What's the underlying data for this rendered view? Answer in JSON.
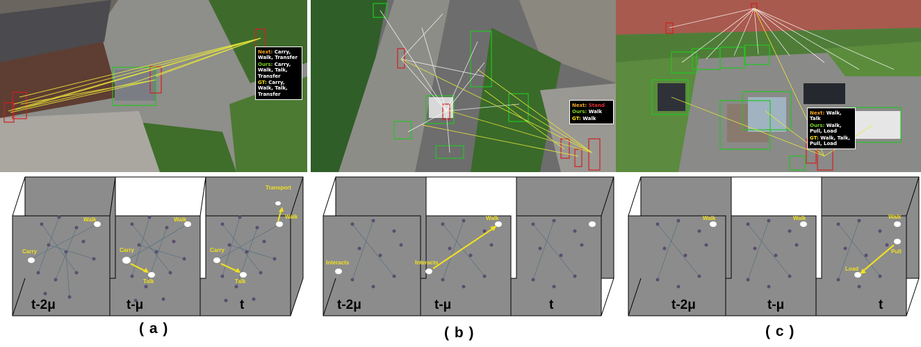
{
  "panels": [
    {
      "label": "( a )",
      "callout": {
        "next_tag": "Next:",
        "next": "Carry, Walk, Transfer",
        "ours_tag": "Ours:",
        "ours": "Carry, Walk, Talk, Transfer",
        "gt_tag": "GT:",
        "gt": "Carry, Walk, Talk, Transfer"
      },
      "frames": [
        "t-2μ",
        "t-μ",
        "t"
      ],
      "node_labels": {
        "f1": [
          "Walk",
          "Carry"
        ],
        "f2": [
          "Walk",
          "Carry",
          "Talk"
        ],
        "f3": [
          "Transport",
          "Walk",
          "Carry",
          "Talk"
        ]
      }
    },
    {
      "label": "( b )",
      "callout": {
        "next_tag": "Next:",
        "next": "Stand",
        "ours_tag": "Ours:",
        "ours": "Walk",
        "gt_tag": "GT:",
        "gt": "Walk"
      },
      "frames": [
        "t-2μ",
        "t-μ",
        "t"
      ],
      "node_labels": {
        "f1": [
          "Interacts"
        ],
        "f2": [
          "Walk",
          "Interacts"
        ],
        "f3": []
      }
    },
    {
      "label": "( c )",
      "callout": {
        "next_tag": "Next:",
        "next": "Walk, Talk",
        "ours_tag": "Ours:",
        "ours": "Walk, Pull, Load",
        "gt_tag": "GT:",
        "gt": "Walk, Talk, Pull, Load"
      },
      "frames": [
        "t-2μ",
        "t-μ",
        "t"
      ],
      "node_labels": {
        "f1": [
          "Walk"
        ],
        "f2": [
          "Walk"
        ],
        "f3": [
          "Walk",
          "Pull",
          "Load"
        ]
      }
    }
  ]
}
